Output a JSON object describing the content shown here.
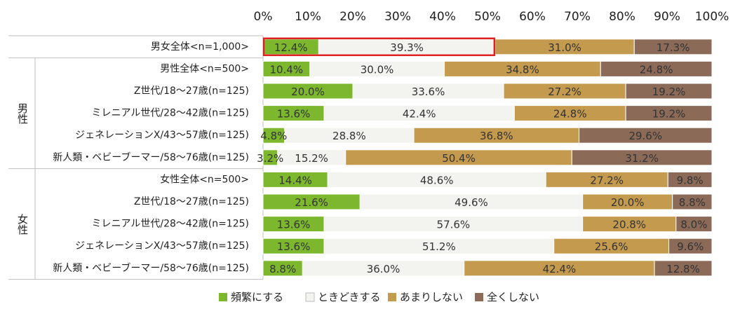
{
  "chart_data": {
    "type": "bar",
    "orientation": "horizontal",
    "stacked": true,
    "percent": true,
    "xlim": [
      0,
      100
    ],
    "x_ticks": [
      "0%",
      "10%",
      "20%",
      "30%",
      "40%",
      "50%",
      "60%",
      "70%",
      "80%",
      "90%",
      "100%"
    ],
    "tick_position": "top",
    "legend_position": "bottom",
    "series": [
      {
        "name": "頻繁にする",
        "color": "#7cb72e"
      },
      {
        "name": "ときどきする",
        "color": "#f3f3ef"
      },
      {
        "name": "あまりしない",
        "color": "#c49a4e"
      },
      {
        "name": "全くしない",
        "color": "#8c6a58"
      }
    ],
    "groups": [
      {
        "label": "男性",
        "rows": [
          1,
          5
        ]
      },
      {
        "label": "女性",
        "rows": [
          6,
          10
        ]
      }
    ],
    "rows": [
      {
        "label": "男女全体<n=1,000>",
        "values": [
          12.4,
          39.3,
          31.0,
          17.3
        ],
        "labels": [
          "12.4%",
          "39.3%",
          "31.0%",
          "17.3%"
        ],
        "highlight_segments": [
          0,
          1
        ],
        "highlight_color": "#e02020"
      },
      {
        "label": "男性全体<n=500>",
        "values": [
          10.4,
          30.0,
          34.8,
          24.8
        ],
        "labels": [
          "10.4%",
          "30.0%",
          "34.8%",
          "24.8%"
        ]
      },
      {
        "label": "Z世代/18～27歳(n=125)",
        "values": [
          20.0,
          33.6,
          27.2,
          19.2
        ],
        "labels": [
          "20.0%",
          "33.6%",
          "27.2%",
          "19.2%"
        ]
      },
      {
        "label": "ミレニアル世代/28～42歳(n=125)",
        "values": [
          13.6,
          42.4,
          24.8,
          19.2
        ],
        "labels": [
          "13.6%",
          "42.4%",
          "24.8%",
          "19.2%"
        ]
      },
      {
        "label": "ジェネレーションX/43～57歳(n=125)",
        "values": [
          4.8,
          28.8,
          36.8,
          29.6
        ],
        "labels": [
          "4.8%",
          "28.8%",
          "36.8%",
          "29.6%"
        ]
      },
      {
        "label": "新人類・ベビーブーマー/58～76歳(n=125)",
        "values": [
          3.2,
          15.2,
          50.4,
          31.2
        ],
        "labels": [
          "3.2%",
          "15.2%",
          "50.4%",
          "31.2%"
        ]
      },
      {
        "label": "女性全体<n=500>",
        "values": [
          14.4,
          48.6,
          27.2,
          9.8
        ],
        "labels": [
          "14.4%",
          "48.6%",
          "27.2%",
          "9.8%"
        ]
      },
      {
        "label": "Z世代/18～27歳(n=125)",
        "values": [
          21.6,
          49.6,
          20.0,
          8.8
        ],
        "labels": [
          "21.6%",
          "49.6%",
          "20.0%",
          "8.8%"
        ]
      },
      {
        "label": "ミレニアル世代/28～42歳(n=125)",
        "values": [
          13.6,
          57.6,
          20.8,
          8.0
        ],
        "labels": [
          "13.6%",
          "57.6%",
          "20.8%",
          "8.0%"
        ]
      },
      {
        "label": "ジェネレーションX/43～57歳(n=125)",
        "values": [
          13.6,
          51.2,
          25.6,
          9.6
        ],
        "labels": [
          "13.6%",
          "51.2%",
          "25.6%",
          "9.6%"
        ]
      },
      {
        "label": "新人類・ベビーブーマー/58～76歳(n=125)",
        "values": [
          8.8,
          36.0,
          42.4,
          12.8
        ],
        "labels": [
          "8.8%",
          "36.0%",
          "42.4%",
          "12.8%"
        ]
      }
    ]
  }
}
